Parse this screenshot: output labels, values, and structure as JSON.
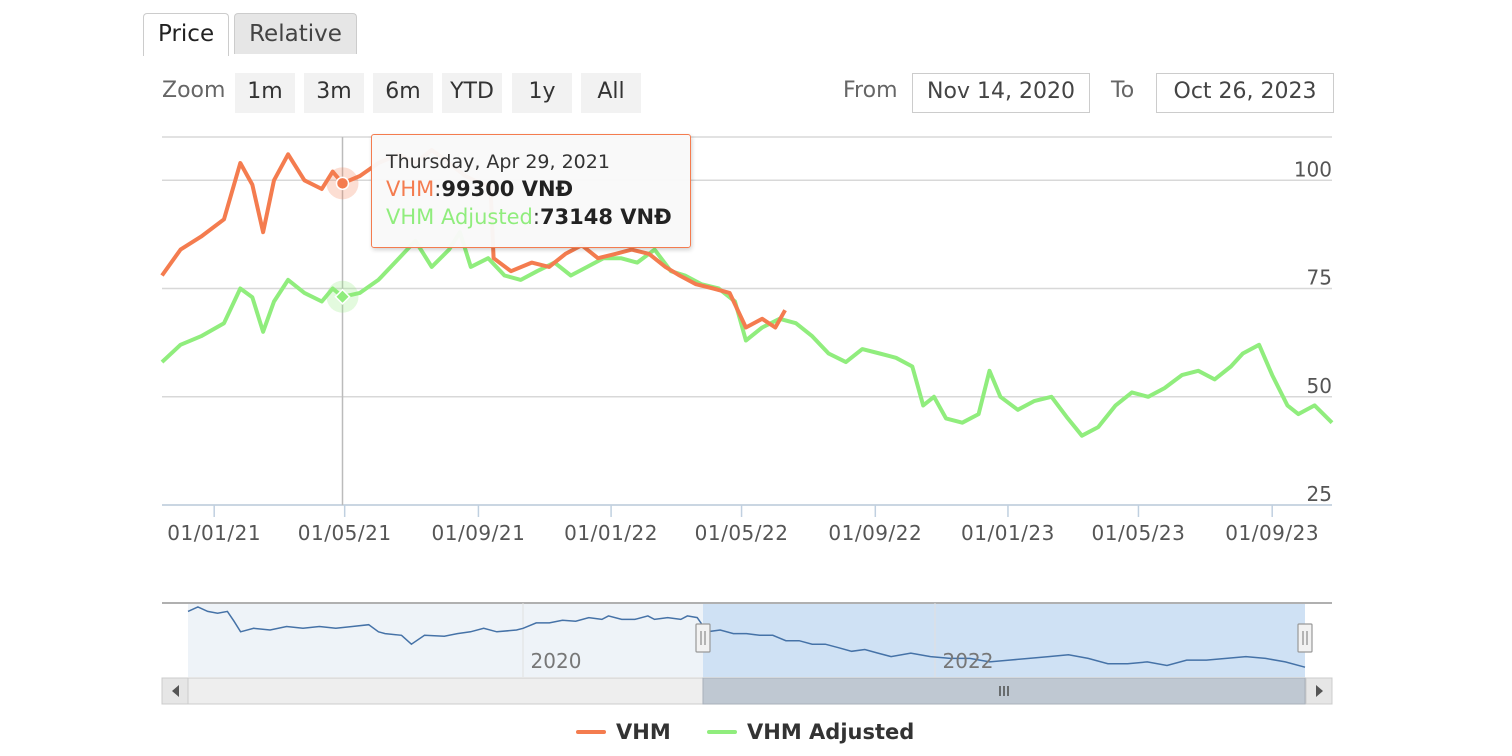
{
  "tabs": [
    {
      "label": "Price",
      "active": true
    },
    {
      "label": "Relative",
      "active": false
    }
  ],
  "zoom": {
    "label": "Zoom",
    "buttons": [
      "1m",
      "3m",
      "6m",
      "YTD",
      "1y",
      "All"
    ]
  },
  "range": {
    "from_label": "From",
    "from_value": "Nov 14, 2020",
    "to_label": "To",
    "to_value": "Oct 26, 2023"
  },
  "tooltip": {
    "date": "Thursday, Apr 29, 2021",
    "series1_name": "VHM",
    "series1_value": "99300 VNĐ",
    "series2_name": "VHM Adjusted",
    "series2_value": "73148 VNĐ"
  },
  "colors": {
    "vhm": "#f47c4f",
    "vhm_adjusted": "#90ed7d",
    "navigator": "#4572a7"
  },
  "chart_data": {
    "type": "line",
    "x_range": [
      "2020-11-14",
      "2023-10-26"
    ],
    "ylim": [
      25,
      110
    ],
    "y_ticks": [
      25,
      50,
      75,
      100
    ],
    "x_tick_labels": [
      "01/01/21",
      "01/05/21",
      "01/09/21",
      "01/01/22",
      "01/05/22",
      "01/09/22",
      "01/01/23",
      "01/05/23",
      "01/09/23"
    ],
    "x_tick_dates": [
      "2021-01-01",
      "2021-05-01",
      "2021-09-01",
      "2022-01-01",
      "2022-05-01",
      "2022-09-01",
      "2023-01-01",
      "2023-05-01",
      "2023-09-01"
    ],
    "grid": true,
    "legend": "bottom-center",
    "series": [
      {
        "name": "VHM",
        "color": "#f47c4f",
        "points": [
          [
            "2020-11-14",
            78
          ],
          [
            "2020-12-01",
            84
          ],
          [
            "2020-12-20",
            87
          ],
          [
            "2021-01-10",
            91
          ],
          [
            "2021-01-25",
            104
          ],
          [
            "2021-02-05",
            99
          ],
          [
            "2021-02-15",
            88
          ],
          [
            "2021-02-25",
            100
          ],
          [
            "2021-03-10",
            106
          ],
          [
            "2021-03-25",
            100
          ],
          [
            "2021-04-10",
            98
          ],
          [
            "2021-04-20",
            102
          ],
          [
            "2021-04-29",
            99.3
          ],
          [
            "2021-05-15",
            101
          ],
          [
            "2021-06-01",
            104
          ],
          [
            "2021-06-20",
            106
          ],
          [
            "2021-07-05",
            104
          ],
          [
            "2021-07-20",
            107
          ],
          [
            "2021-08-05",
            104
          ],
          [
            "2021-08-20",
            101
          ],
          [
            "2021-09-05",
            99
          ],
          [
            "2021-09-12",
            99
          ],
          [
            "2021-09-15",
            82
          ],
          [
            "2021-10-01",
            79
          ],
          [
            "2021-10-20",
            81
          ],
          [
            "2021-11-05",
            80
          ],
          [
            "2021-11-20",
            83
          ],
          [
            "2021-12-05",
            85
          ],
          [
            "2021-12-20",
            82
          ],
          [
            "2022-01-05",
            83
          ],
          [
            "2022-01-20",
            84
          ],
          [
            "2022-02-05",
            83
          ],
          [
            "2022-02-20",
            80
          ],
          [
            "2022-03-05",
            78
          ],
          [
            "2022-03-20",
            76
          ],
          [
            "2022-04-05",
            75
          ],
          [
            "2022-04-20",
            74
          ],
          [
            "2022-05-05",
            66
          ],
          [
            "2022-05-20",
            68
          ],
          [
            "2022-06-01",
            66
          ],
          [
            "2022-06-10",
            70
          ]
        ]
      },
      {
        "name": "VHM Adjusted",
        "color": "#90ed7d",
        "points": [
          [
            "2020-11-14",
            58
          ],
          [
            "2020-12-01",
            62
          ],
          [
            "2020-12-20",
            64
          ],
          [
            "2021-01-10",
            67
          ],
          [
            "2021-01-25",
            75
          ],
          [
            "2021-02-05",
            73
          ],
          [
            "2021-02-15",
            65
          ],
          [
            "2021-02-25",
            72
          ],
          [
            "2021-03-10",
            77
          ],
          [
            "2021-03-25",
            74
          ],
          [
            "2021-04-10",
            72
          ],
          [
            "2021-04-20",
            75
          ],
          [
            "2021-04-29",
            73.1
          ],
          [
            "2021-05-15",
            74
          ],
          [
            "2021-06-01",
            77
          ],
          [
            "2021-06-20",
            82
          ],
          [
            "2021-07-05",
            86
          ],
          [
            "2021-07-20",
            80
          ],
          [
            "2021-08-05",
            84
          ],
          [
            "2021-08-15",
            88
          ],
          [
            "2021-08-25",
            80
          ],
          [
            "2021-09-10",
            82
          ],
          [
            "2021-09-25",
            78
          ],
          [
            "2021-10-10",
            77
          ],
          [
            "2021-10-25",
            79
          ],
          [
            "2021-11-10",
            81
          ],
          [
            "2021-11-25",
            78
          ],
          [
            "2021-12-10",
            80
          ],
          [
            "2021-12-25",
            82
          ],
          [
            "2022-01-10",
            82
          ],
          [
            "2022-01-25",
            81
          ],
          [
            "2022-02-10",
            84
          ],
          [
            "2022-02-25",
            79
          ],
          [
            "2022-03-10",
            78
          ],
          [
            "2022-03-25",
            76
          ],
          [
            "2022-04-10",
            75
          ],
          [
            "2022-04-25",
            72
          ],
          [
            "2022-05-05",
            63
          ],
          [
            "2022-05-20",
            66
          ],
          [
            "2022-06-05",
            68
          ],
          [
            "2022-06-20",
            67
          ],
          [
            "2022-07-05",
            64
          ],
          [
            "2022-07-20",
            60
          ],
          [
            "2022-08-05",
            58
          ],
          [
            "2022-08-20",
            61
          ],
          [
            "2022-09-05",
            60
          ],
          [
            "2022-09-20",
            59
          ],
          [
            "2022-10-05",
            57
          ],
          [
            "2022-10-15",
            48
          ],
          [
            "2022-10-25",
            50
          ],
          [
            "2022-11-05",
            45
          ],
          [
            "2022-11-20",
            44
          ],
          [
            "2022-12-05",
            46
          ],
          [
            "2022-12-15",
            56
          ],
          [
            "2022-12-25",
            50
          ],
          [
            "2023-01-10",
            47
          ],
          [
            "2023-01-25",
            49
          ],
          [
            "2023-02-10",
            50
          ],
          [
            "2023-02-25",
            45
          ],
          [
            "2023-03-10",
            41
          ],
          [
            "2023-03-25",
            43
          ],
          [
            "2023-04-10",
            48
          ],
          [
            "2023-04-25",
            51
          ],
          [
            "2023-05-10",
            50
          ],
          [
            "2023-05-25",
            52
          ],
          [
            "2023-06-10",
            55
          ],
          [
            "2023-06-25",
            56
          ],
          [
            "2023-07-10",
            54
          ],
          [
            "2023-07-25",
            57
          ],
          [
            "2023-08-05",
            60
          ],
          [
            "2023-08-20",
            62
          ],
          [
            "2023-09-01",
            55
          ],
          [
            "2023-09-15",
            48
          ],
          [
            "2023-09-25",
            46
          ],
          [
            "2023-10-10",
            48
          ],
          [
            "2023-10-26",
            44
          ]
        ]
      }
    ],
    "navigator": {
      "tick_labels": [
        "2020",
        "2022"
      ],
      "selected_range": [
        "2020-11-14",
        "2023-10-26"
      ],
      "points": [
        [
          0,
          95
        ],
        [
          0.03,
          100
        ],
        [
          0.06,
          95
        ],
        [
          0.09,
          93
        ],
        [
          0.12,
          95
        ],
        [
          0.14,
          84
        ],
        [
          0.16,
          72
        ],
        [
          0.2,
          76
        ],
        [
          0.25,
          74
        ],
        [
          0.3,
          78
        ],
        [
          0.35,
          76
        ],
        [
          0.4,
          78
        ],
        [
          0.45,
          76
        ],
        [
          0.5,
          78
        ],
        [
          0.55,
          80
        ],
        [
          0.58,
          72
        ],
        [
          0.6,
          70
        ],
        [
          0.65,
          68
        ],
        [
          0.68,
          58
        ],
        [
          0.72,
          68
        ],
        [
          0.78,
          67
        ],
        [
          0.82,
          70
        ],
        [
          0.86,
          72
        ],
        [
          0.9,
          76
        ],
        [
          0.94,
          72
        ],
        [
          1,
          74
        ],
        [
          1.02,
          76
        ],
        [
          1.06,
          82
        ],
        [
          1.1,
          82
        ],
        [
          1.14,
          85
        ],
        [
          1.18,
          84
        ],
        [
          1.22,
          88
        ],
        [
          1.26,
          86
        ],
        [
          1.28,
          90
        ],
        [
          1.32,
          86
        ],
        [
          1.36,
          86
        ],
        [
          1.4,
          90
        ],
        [
          1.42,
          86
        ],
        [
          1.46,
          88
        ],
        [
          1.5,
          86
        ],
        [
          1.52,
          90
        ],
        [
          1.55,
          88
        ],
        [
          1.58,
          72
        ],
        [
          1.62,
          74
        ],
        [
          1.66,
          70
        ],
        [
          1.7,
          70
        ],
        [
          1.74,
          68
        ],
        [
          1.78,
          68
        ],
        [
          1.82,
          62
        ],
        [
          1.86,
          62
        ],
        [
          1.9,
          58
        ],
        [
          1.94,
          58
        ],
        [
          1.98,
          54
        ],
        [
          2.02,
          50
        ],
        [
          2.06,
          52
        ],
        [
          2.1,
          48
        ],
        [
          2.14,
          44
        ],
        [
          2.2,
          48
        ],
        [
          2.26,
          44
        ],
        [
          2.32,
          42
        ],
        [
          2.38,
          42
        ],
        [
          2.44,
          38
        ],
        [
          2.5,
          40
        ],
        [
          2.56,
          42
        ],
        [
          2.62,
          44
        ],
        [
          2.68,
          46
        ],
        [
          2.74,
          42
        ],
        [
          2.8,
          36
        ],
        [
          2.86,
          36
        ],
        [
          2.92,
          38
        ],
        [
          2.98,
          34
        ],
        [
          3.04,
          40
        ],
        [
          3.1,
          40
        ],
        [
          3.16,
          42
        ],
        [
          3.22,
          44
        ],
        [
          3.28,
          42
        ],
        [
          3.34,
          38
        ],
        [
          3.4,
          32
        ]
      ]
    }
  }
}
